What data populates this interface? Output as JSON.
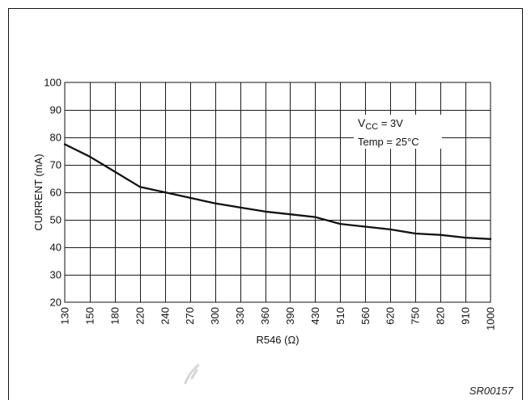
{
  "chart_data": {
    "type": "line",
    "xlabel": "R546 (Ω)",
    "ylabel": "CURRENT (mA)",
    "categories": [
      "130",
      "150",
      "180",
      "220",
      "240",
      "270",
      "300",
      "330",
      "360",
      "390",
      "430",
      "510",
      "560",
      "620",
      "750",
      "820",
      "910",
      "1000"
    ],
    "series": [
      {
        "values": [
          77.5,
          73,
          67.5,
          62,
          60,
          58,
          56,
          54.5,
          53,
          52,
          51,
          48.5,
          47.5,
          46.5,
          45,
          44.5,
          43.5,
          43
        ]
      }
    ],
    "ylim": [
      20,
      100
    ],
    "yticks": [
      100,
      90,
      80,
      70,
      60,
      50,
      40,
      30,
      20
    ],
    "grid": true,
    "annotations": {
      "vcc": {
        "symbol": "V",
        "subscript": "CC",
        "value": " = 3V"
      },
      "temp": "Temp = 25°C"
    },
    "colors": {
      "line": "#111111",
      "grid": "#1a1a1a"
    }
  },
  "figure_id": "SR00157"
}
